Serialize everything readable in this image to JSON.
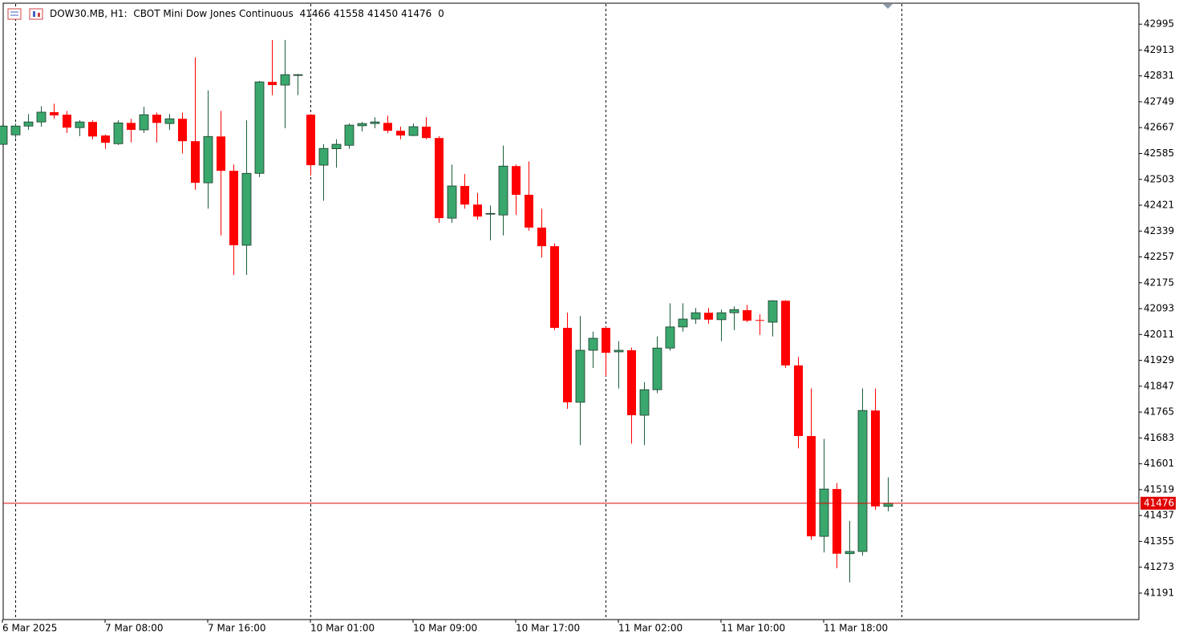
{
  "chart_data": {
    "type": "candlestick",
    "title": "DOW30.MB, H1:",
    "subtitle": "CBOT Mini Dow Jones Continuous",
    "header_values": [
      41466,
      41558,
      41450,
      41476,
      0
    ],
    "categories": [
      "6 Mar 2025",
      null,
      null,
      null,
      null,
      null,
      null,
      null,
      "7 Mar 08:00",
      null,
      null,
      null,
      null,
      null,
      null,
      null,
      "7 Mar 16:00",
      null,
      null,
      null,
      null,
      null,
      null,
      null,
      "10 Mar 01:00",
      null,
      null,
      null,
      null,
      null,
      null,
      null,
      "10 Mar 09:00",
      null,
      null,
      null,
      null,
      null,
      null,
      null,
      "10 Mar 17:00",
      null,
      null,
      null,
      null,
      null,
      null,
      null,
      "11 Mar 02:00",
      null,
      null,
      null,
      null,
      null,
      null,
      null,
      "11 Mar 10:00",
      null,
      null,
      null,
      null,
      null,
      null,
      null,
      "11 Mar 18:00",
      null,
      null,
      null,
      null,
      null
    ],
    "open": [
      42614,
      42644,
      42672,
      42685,
      42716,
      42708,
      42667,
      42685,
      42642,
      42616,
      42682,
      42660,
      42708,
      42680,
      42695,
      42624,
      42492,
      42639,
      42530,
      42294,
      42522,
      42812,
      42802,
      42833,
      42708,
      42548,
      42600,
      42611,
      42673,
      42680,
      42682,
      42657,
      42642,
      42670,
      42634,
      42380,
      42482,
      42423,
      42393,
      42390,
      42545,
      42454,
      42350,
      42291,
      42032,
      41796,
      41961,
      42032,
      41956,
      41961,
      41755,
      41836,
      41968,
      42035,
      42060,
      42080,
      42058,
      42080,
      42088,
      42057,
      42050,
      42118,
      41913,
      41689,
      41371,
      41521,
      41316,
      41323,
      41770,
      41466
    ],
    "high": [
      42677,
      42680,
      42710,
      42735,
      42743,
      42720,
      42690,
      42690,
      42645,
      42690,
      42695,
      42733,
      42715,
      42710,
      42715,
      42890,
      42785,
      42720,
      42550,
      42690,
      42815,
      42945,
      42945,
      42837,
      42710,
      42615,
      42630,
      42680,
      42685,
      42700,
      42705,
      42670,
      42680,
      42700,
      42640,
      42550,
      42520,
      42460,
      42420,
      42610,
      42550,
      42560,
      42410,
      42300,
      42080,
      42070,
      42020,
      42035,
      41990,
      41970,
      41860,
      42005,
      42110,
      42110,
      42095,
      42095,
      42090,
      42100,
      42105,
      42075,
      42120,
      42120,
      41940,
      41840,
      41680,
      41540,
      41420,
      41840,
      41840,
      41558
    ],
    "low": [
      42614,
      42634,
      42660,
      42670,
      42695,
      42650,
      42640,
      42630,
      42600,
      42612,
      42620,
      42650,
      42620,
      42660,
      42585,
      42470,
      42410,
      42325,
      42200,
      42200,
      42510,
      42770,
      42665,
      42770,
      42515,
      42435,
      42540,
      42600,
      42655,
      42665,
      42650,
      42630,
      42640,
      42630,
      42365,
      42365,
      42410,
      42375,
      42310,
      42325,
      42390,
      42340,
      42255,
      42025,
      41775,
      41660,
      41905,
      41880,
      41840,
      41665,
      41660,
      41825,
      41960,
      42020,
      42045,
      42045,
      41990,
      42025,
      42050,
      42010,
      42005,
      41905,
      41650,
      41360,
      41320,
      41270,
      41225,
      41310,
      41455,
      41450
    ],
    "close": [
      42672,
      42672,
      42685,
      42716,
      42706,
      42667,
      42685,
      42639,
      42619,
      42682,
      42660,
      42708,
      42682,
      42695,
      42624,
      42492,
      42639,
      42530,
      42294,
      42522,
      42812,
      42802,
      42835,
      42835,
      42548,
      42601,
      42614,
      42675,
      42680,
      42685,
      42657,
      42642,
      42670,
      42634,
      42380,
      42482,
      42423,
      42385,
      42395,
      42545,
      42454,
      42350,
      42291,
      42032,
      41796,
      41961,
      41999,
      41953,
      41961,
      41755,
      41836,
      41968,
      42035,
      42060,
      42080,
      42058,
      42080,
      42090,
      42055,
      42055,
      42118,
      41913,
      41689,
      41371,
      41521,
      41316,
      41323,
      41770,
      41466,
      41476
    ],
    "up_color": "#3aa76d",
    "down_color": "#ff0000",
    "last_price": 41476,
    "price_line_color": "#e00000",
    "ylim": [
      41107,
      43059
    ],
    "yticks": [
      42995,
      42913,
      42831,
      42749,
      42667,
      42585,
      42503,
      42421,
      42339,
      42257,
      42175,
      42093,
      42011,
      41929,
      41847,
      41765,
      41683,
      41601,
      41519,
      41437,
      41355,
      41273,
      41191
    ]
  }
}
